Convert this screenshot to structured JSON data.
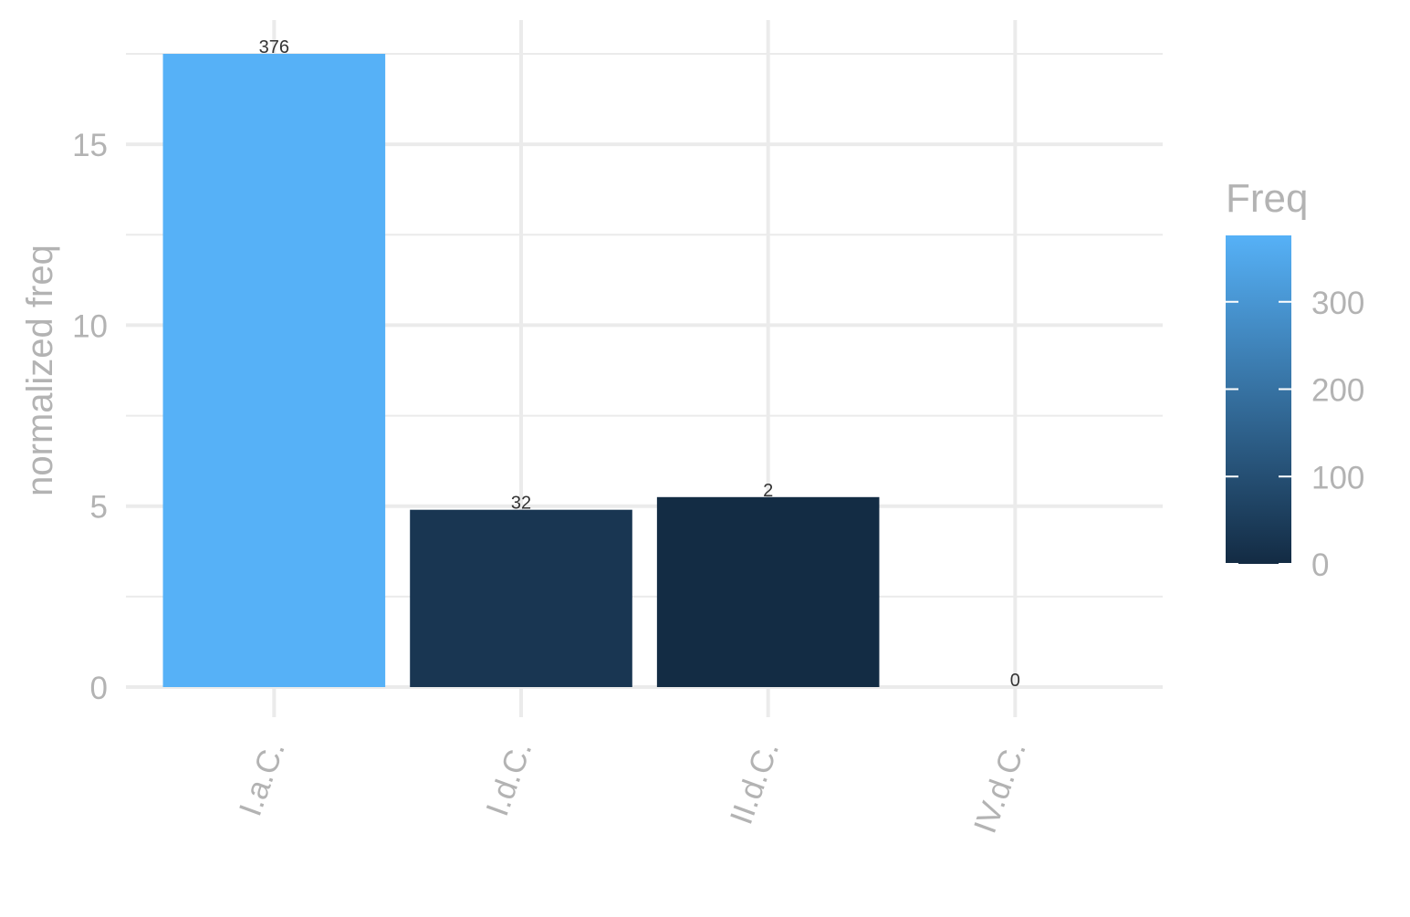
{
  "chart_data": {
    "type": "bar",
    "title": "",
    "xlabel": "",
    "ylabel": "normalized freq",
    "categories": [
      "I.a.C.",
      "I.d.C.",
      "II.d.C.",
      "IV.d.C."
    ],
    "values": [
      17.5,
      4.9,
      5.25,
      0
    ],
    "freq": [
      376,
      32,
      2,
      0
    ],
    "data_labels": [
      "376",
      "32",
      "2",
      "0"
    ],
    "ylim": [
      0,
      17.5
    ],
    "y_ticks": [
      0,
      5,
      10,
      15
    ],
    "y_minor_ticks": [
      2.5,
      7.5,
      12.5,
      17.5
    ],
    "grid": true,
    "x_tick_rotation_deg": -70,
    "legend": {
      "title": "Freq",
      "placement": "right",
      "range": [
        0,
        376
      ],
      "ticks": [
        0,
        100,
        200,
        300
      ],
      "color_low": "#132B43",
      "color_high": "#56B1F7"
    }
  },
  "colors": {
    "grid": "#ebebeb",
    "axis_text": "#b3b3b3",
    "data_label": "#333333",
    "background": "#ffffff"
  }
}
